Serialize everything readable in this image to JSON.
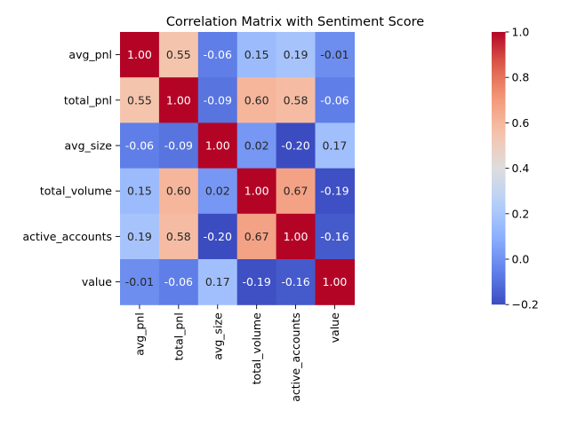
{
  "chart_data": {
    "type": "heatmap",
    "title": "Correlation Matrix with Sentiment Score",
    "xlabel": "",
    "ylabel": "",
    "row_labels": [
      "avg_pnl",
      "total_pnl",
      "avg_size",
      "total_volume",
      "active_accounts",
      "value"
    ],
    "col_labels": [
      "avg_pnl",
      "total_pnl",
      "avg_size",
      "total_volume",
      "active_accounts",
      "value"
    ],
    "values": [
      [
        1.0,
        0.55,
        -0.06,
        0.15,
        0.19,
        -0.01
      ],
      [
        0.55,
        1.0,
        -0.09,
        0.6,
        0.58,
        -0.06
      ],
      [
        -0.06,
        -0.09,
        1.0,
        0.02,
        -0.2,
        0.17
      ],
      [
        0.15,
        0.6,
        0.02,
        1.0,
        0.67,
        -0.19
      ],
      [
        0.19,
        0.58,
        -0.2,
        0.67,
        1.0,
        -0.16
      ],
      [
        -0.01,
        -0.06,
        0.17,
        -0.19,
        -0.16,
        1.0
      ]
    ],
    "value_format": "2 decimals",
    "colormap": "coolwarm",
    "colorbar": {
      "range": [
        -0.2,
        1.0
      ],
      "ticks": [
        "−0.2",
        "0.0",
        "0.2",
        "0.4",
        "0.6",
        "0.8",
        "1.0"
      ]
    },
    "annotated": true,
    "grid": false
  }
}
